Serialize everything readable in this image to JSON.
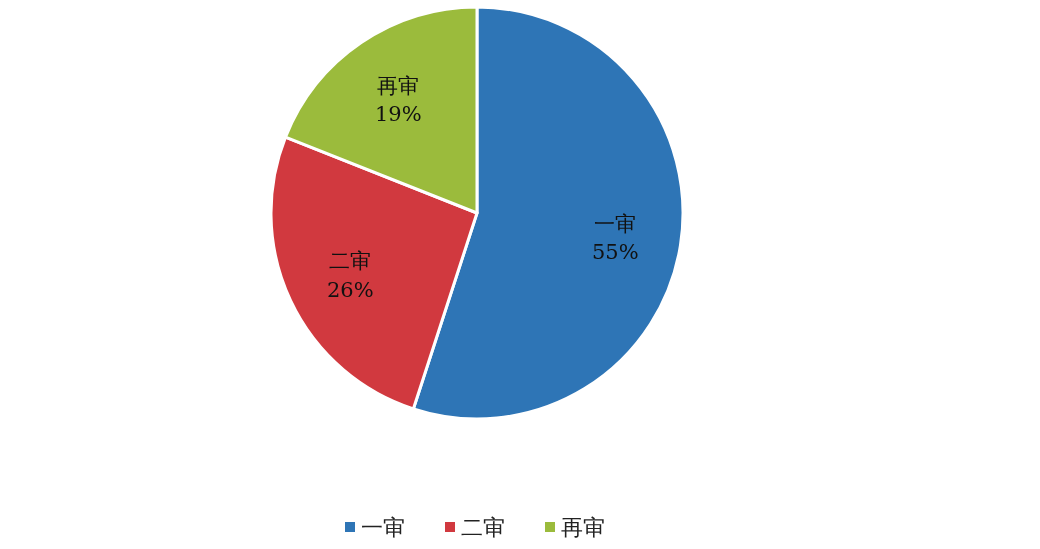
{
  "chart_data": {
    "type": "pie",
    "categories": [
      "一审",
      "二审",
      "再审"
    ],
    "values": [
      55,
      26,
      19
    ],
    "value_labels": [
      "55%",
      "26%",
      "19%"
    ],
    "colors": [
      "#2e75b6",
      "#d1393f",
      "#9bbb3c"
    ],
    "legend": "bottom"
  }
}
